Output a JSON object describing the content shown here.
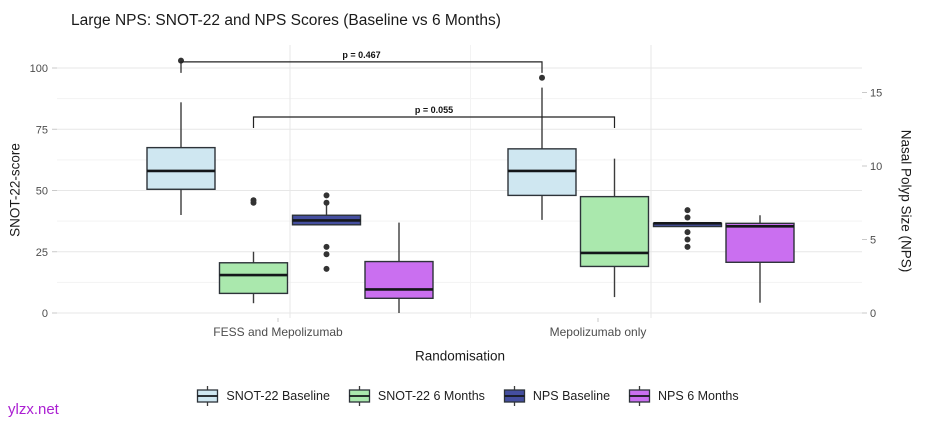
{
  "title": "Large NPS: SNOT-22 and NPS Scores (Baseline vs 6 Months)",
  "watermark": "ylzx.net",
  "axes": {
    "left": {
      "label": "SNOT-22-score",
      "ticks": [
        0,
        25,
        50,
        75,
        100
      ]
    },
    "right": {
      "label": "Nasal Polyp Size (NPS)",
      "ticks": [
        0,
        5,
        10,
        15
      ],
      "transform": "right_value = left_value / 6"
    },
    "x": {
      "label": "Randomisation",
      "categories": [
        "FESS and Mepolizumab",
        "Mepolizumab only"
      ]
    }
  },
  "chart_data": {
    "type": "boxplot",
    "title": "Large NPS: SNOT-22 and NPS Scores (Baseline vs 6 Months)",
    "xlabel": "Randomisation",
    "ylabel": "SNOT-22-score",
    "ylabel_right": "Nasal Polyp Size (NPS)",
    "ylim_left": [
      0,
      109
    ],
    "ylim_right": [
      0,
      18
    ],
    "grid": "on",
    "legend_position": "bottom",
    "categories": [
      "FESS and Mepolizumab",
      "Mepolizumab only"
    ],
    "series": [
      {
        "name": "SNOT-22 Baseline",
        "axis": "left",
        "fill": "#cfe7f1",
        "boxes": [
          {
            "group": "FESS and Mepolizumab",
            "whisker_low": 40,
            "q1": 50.5,
            "median": 58,
            "q3": 67.5,
            "whisker_high": 86,
            "outliers": [
              103
            ]
          },
          {
            "group": "Mepolizumab only",
            "whisker_low": 38,
            "q1": 48,
            "median": 58,
            "q3": 67,
            "whisker_high": 92,
            "outliers": [
              96
            ]
          }
        ]
      },
      {
        "name": "SNOT-22 6 Months",
        "axis": "left",
        "fill": "#aae8ad",
        "boxes": [
          {
            "group": "FESS and Mepolizumab",
            "whisker_low": 4,
            "q1": 8,
            "median": 15.5,
            "q3": 20.5,
            "whisker_high": 25,
            "outliers": [
              45,
              46
            ]
          },
          {
            "group": "Mepolizumab only",
            "whisker_low": 6.5,
            "q1": 19,
            "median": 24.5,
            "q3": 47.5,
            "whisker_high": 63,
            "outliers": []
          }
        ]
      },
      {
        "name": "NPS Baseline",
        "axis": "right",
        "fill": "#444e9f",
        "boxes": [
          {
            "group": "FESS and Mepolizumab",
            "whisker_low": 6,
            "q1": 6,
            "median": 6.3,
            "q3": 6.65,
            "whisker_high": 7.4,
            "outliers": [
              8,
              7.5,
              4.5,
              4,
              3
            ]
          },
          {
            "group": "Mepolizumab only",
            "whisker_low": 6.1,
            "q1": 6.1,
            "median": 6.1,
            "q3": 6.1,
            "whisker_high": 6.1,
            "outliers": [
              7,
              6.5,
              5.5,
              5,
              4.5
            ]
          }
        ]
      },
      {
        "name": "NPS 6 Months",
        "axis": "right",
        "fill": "#ca6ff0",
        "boxes": [
          {
            "group": "FESS and Mepolizumab",
            "whisker_low": 0,
            "q1": 1,
            "median": 1.6,
            "q3": 3.5,
            "whisker_high": 6.15,
            "outliers": []
          },
          {
            "group": "Mepolizumab only",
            "whisker_low": 0.7,
            "q1": 3.45,
            "median": 5.9,
            "q3": 6.1,
            "whisker_high": 6.65,
            "outliers": []
          }
        ]
      }
    ],
    "annotations": [
      {
        "label": "p = 0.467",
        "series": "SNOT-22 Baseline",
        "groups": [
          0,
          1
        ],
        "y_left_units": 102.5
      },
      {
        "label": "p = 0.055",
        "series": "SNOT-22 6 Months",
        "groups": [
          0,
          1
        ],
        "y_left_units": 80
      }
    ]
  }
}
